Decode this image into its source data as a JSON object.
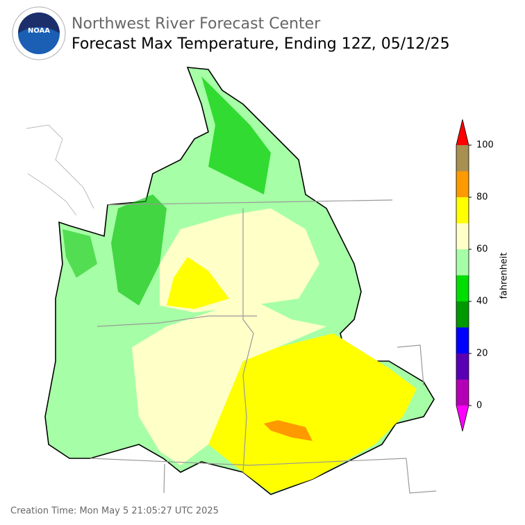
{
  "header": {
    "title": "Northwest River Forecast Center",
    "subtitle": "Forecast Max Temperature, Ending 12Z, 05/12/25"
  },
  "colorbar": {
    "label": "fahrenheit",
    "lim": [
      0,
      100
    ],
    "ticks": [
      0,
      20,
      40,
      60,
      80,
      100
    ],
    "colors": [
      "#b400b4",
      "#5a00b4",
      "#0000ff",
      "#009900",
      "#00dd00",
      "#a6ffa6",
      "#ffffc8",
      "#ffff00",
      "#ff9900",
      "#a89050"
    ],
    "under_color": "#ff00ff",
    "over_color": "#ff0000"
  },
  "footer": {
    "creation_time": "Creation Time: Mon May 5 21:05:27 UTC 2025"
  }
}
